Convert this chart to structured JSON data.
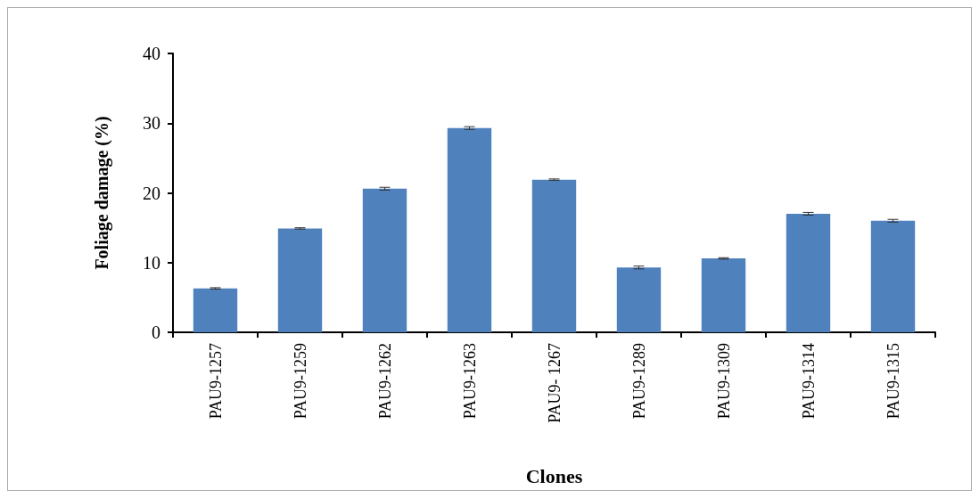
{
  "chart_data": {
    "type": "bar",
    "xlabel": "Clones",
    "ylabel": "Foliage damage (%)",
    "categories": [
      "PAU9-1257",
      "PAU9-1259",
      "PAU9-1262",
      "PAU9-1263",
      "PAU9- 1267",
      "PAU9-1289",
      "PAU9-1309",
      "PAU9-1314",
      "PAU9-1315"
    ],
    "values": [
      6.3,
      14.9,
      20.6,
      29.3,
      21.9,
      9.3,
      10.6,
      17.0,
      16.0
    ],
    "errors": [
      0.1,
      0.1,
      0.2,
      0.2,
      0.1,
      0.2,
      0.1,
      0.2,
      0.2
    ],
    "color": "#4f81bd",
    "ylim": [
      0,
      40
    ],
    "yticks": [
      0,
      10,
      20,
      30,
      40
    ],
    "grid": false
  }
}
